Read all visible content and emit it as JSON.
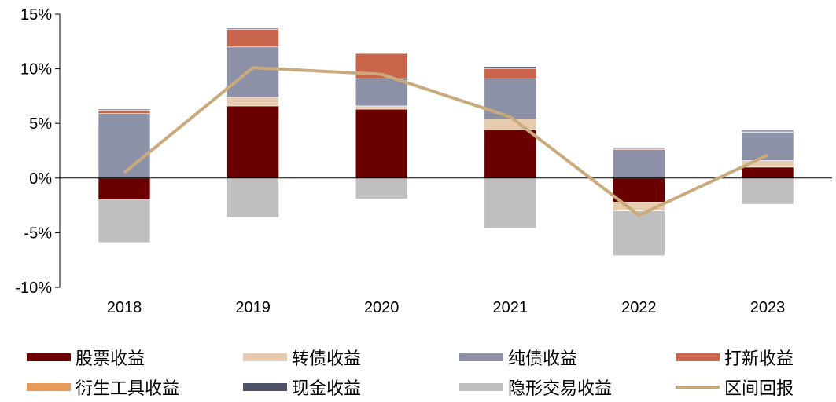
{
  "chart_data": {
    "type": "bar",
    "stacked": true,
    "categories": [
      "2018",
      "2019",
      "2020",
      "2021",
      "2022",
      "2023"
    ],
    "ylim": [
      -10,
      15
    ],
    "yticks": [
      -10,
      -5,
      0,
      5,
      10,
      15
    ],
    "ytick_labels": [
      "-10%",
      "-5%",
      "0%",
      "5%",
      "10%",
      "15%"
    ],
    "grid": false,
    "legend_position": "bottom",
    "series": [
      {
        "name": "股票收益",
        "color": "#6b0000",
        "values": [
          -2.0,
          6.6,
          6.3,
          4.4,
          -2.2,
          1.0
        ]
      },
      {
        "name": "转债收益",
        "color": "#e6cbb0",
        "values": [
          0.0,
          0.8,
          0.3,
          1.0,
          -0.8,
          0.6
        ]
      },
      {
        "name": "纯债收益",
        "color": "#8c91a8",
        "values": [
          5.9,
          4.6,
          2.5,
          3.7,
          2.6,
          2.6
        ]
      },
      {
        "name": "打新收益",
        "color": "#c8654a",
        "values": [
          0.3,
          1.6,
          2.3,
          0.9,
          0.1,
          0.1
        ]
      },
      {
        "name": "衍生工具收益",
        "color": "#e89a58",
        "values": [
          0.0,
          0.0,
          0.0,
          0.0,
          0.0,
          0.0
        ]
      },
      {
        "name": "现金收益",
        "color": "#4d5266",
        "values": [
          0.1,
          0.1,
          0.1,
          0.2,
          0.1,
          0.1
        ]
      },
      {
        "name": "隐形交易收益",
        "color": "#bfbfbf",
        "values": [
          -3.9,
          -3.6,
          -1.9,
          -4.6,
          -4.1,
          -2.4
        ]
      }
    ],
    "line_series": {
      "name": "区间回报",
      "color": "#c9aa7c",
      "values": [
        0.5,
        10.1,
        9.5,
        5.6,
        -3.4,
        2.1
      ]
    }
  }
}
